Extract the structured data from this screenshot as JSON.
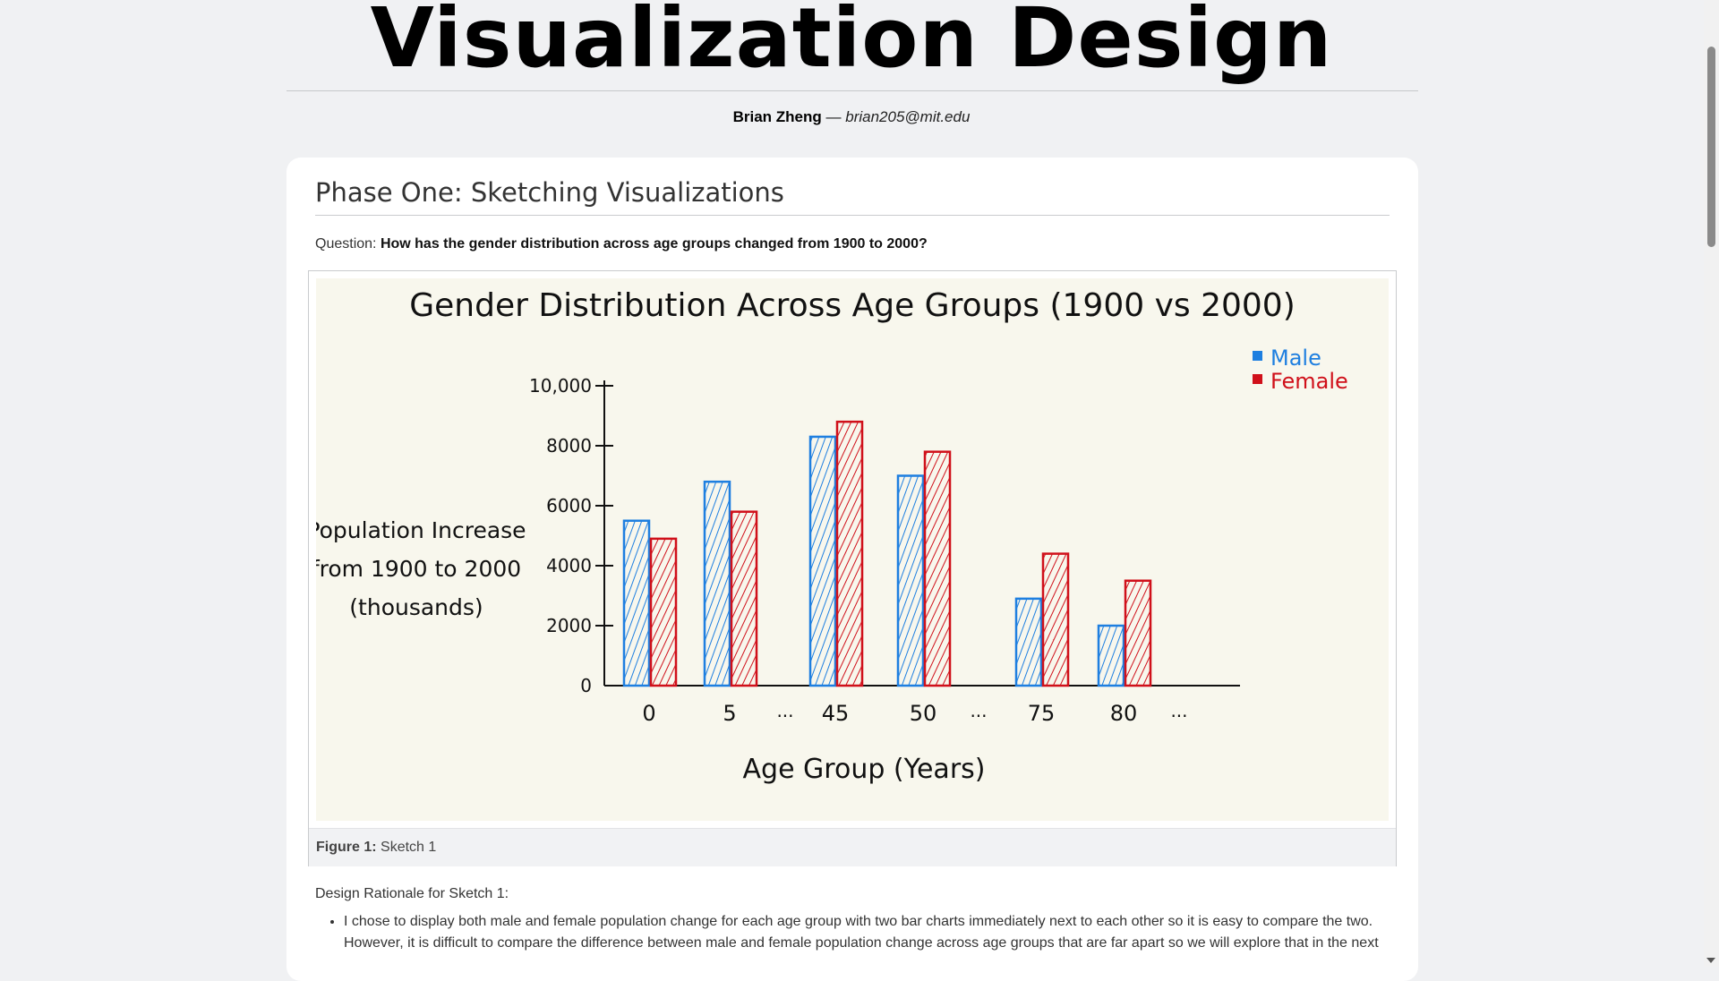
{
  "header": {
    "title": "Visualization Design",
    "author": "Brian Zheng",
    "separator": "—",
    "email": "brian205@mit.edu"
  },
  "section": {
    "heading": "Phase One: Sketching Visualizations",
    "question_label": "Question:",
    "question_text": "How has the gender distribution across age groups changed from 1900 to 2000?"
  },
  "figure": {
    "caption_label": "Figure 1:",
    "caption_text": "Sketch 1"
  },
  "chart_data": {
    "type": "bar",
    "title": "Gender Distribution Across Age Groups (1900 vs 2000)",
    "xlabel": "Age Group (Years)",
    "ylabel_lines": [
      "Population Increase",
      "from 1900 to 2000",
      "(thousands)"
    ],
    "categories": [
      "0",
      "5",
      "45",
      "50",
      "75",
      "80"
    ],
    "ellipsis_after": [
      "5",
      "50",
      "80"
    ],
    "ellipsis_text": "...",
    "y_ticks": [
      "0",
      "2000",
      "4000",
      "6000",
      "8000",
      "10,000"
    ],
    "ylim": [
      0,
      10000
    ],
    "series": [
      {
        "name": "Male",
        "color": "#1e7fe0",
        "values": [
          5500,
          6800,
          8300,
          7000,
          2900,
          2000
        ]
      },
      {
        "name": "Female",
        "color": "#d0101a",
        "values": [
          4900,
          5800,
          8800,
          7800,
          4400,
          3500
        ]
      }
    ],
    "legend_position": "top-right"
  },
  "rationale": {
    "title": "Design Rationale for Sketch 1:",
    "items": [
      "I chose to display both male and female population change for each age group with two bar charts immediately next to each other so it is easy to compare the two. However, it is difficult to compare the difference between male and female population change across age groups that are far apart so we will explore that in the next"
    ]
  },
  "scrollbar": {
    "icon": "chevron-down-icon"
  }
}
